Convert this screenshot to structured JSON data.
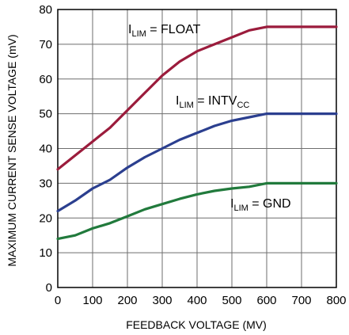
{
  "chart_data": {
    "type": "line",
    "xlabel": "FEEDBACK VOLTAGE (MV)",
    "ylabel": "MAXIMUM CURRENT SENSE VOLTAGE (mV)",
    "xlim": [
      0,
      800
    ],
    "ylim": [
      0,
      80
    ],
    "x_ticks": [
      0,
      100,
      200,
      300,
      400,
      500,
      600,
      700,
      800
    ],
    "y_ticks": [
      0,
      10,
      20,
      30,
      40,
      50,
      60,
      70,
      80
    ],
    "grid": true,
    "series": [
      {
        "label_main": "I",
        "label_sub": "LIM",
        "label_rest": " = FLOAT",
        "color": "#9b1c3c",
        "x": [
          0,
          50,
          100,
          150,
          200,
          250,
          300,
          350,
          400,
          450,
          500,
          550,
          600,
          650,
          700,
          750,
          800
        ],
        "y": [
          34,
          38,
          42,
          46,
          51,
          56,
          61,
          65,
          68,
          70,
          72,
          74,
          75,
          75,
          75,
          75,
          75
        ]
      },
      {
        "label_main": "I",
        "label_sub": "LIM",
        "label_rest": " = INTV",
        "label_sub2": "CC",
        "color": "#2b3f8f",
        "x": [
          0,
          50,
          100,
          150,
          200,
          250,
          300,
          350,
          400,
          450,
          500,
          550,
          600,
          650,
          700,
          750,
          800
        ],
        "y": [
          22,
          25,
          28.5,
          31,
          34.5,
          37.5,
          40,
          42.5,
          44.5,
          46.5,
          48,
          49,
          50,
          50,
          50,
          50,
          50
        ]
      },
      {
        "label_main": "I",
        "label_sub": "LIM",
        "label_rest": " = GND",
        "color": "#217a3c",
        "x": [
          0,
          50,
          100,
          150,
          200,
          250,
          300,
          350,
          400,
          450,
          500,
          550,
          600,
          650,
          700,
          750,
          800
        ],
        "y": [
          14,
          15,
          17,
          18.5,
          20.5,
          22.5,
          24,
          25.5,
          26.8,
          27.8,
          28.5,
          29,
          30,
          30,
          30,
          30,
          30
        ]
      }
    ]
  }
}
